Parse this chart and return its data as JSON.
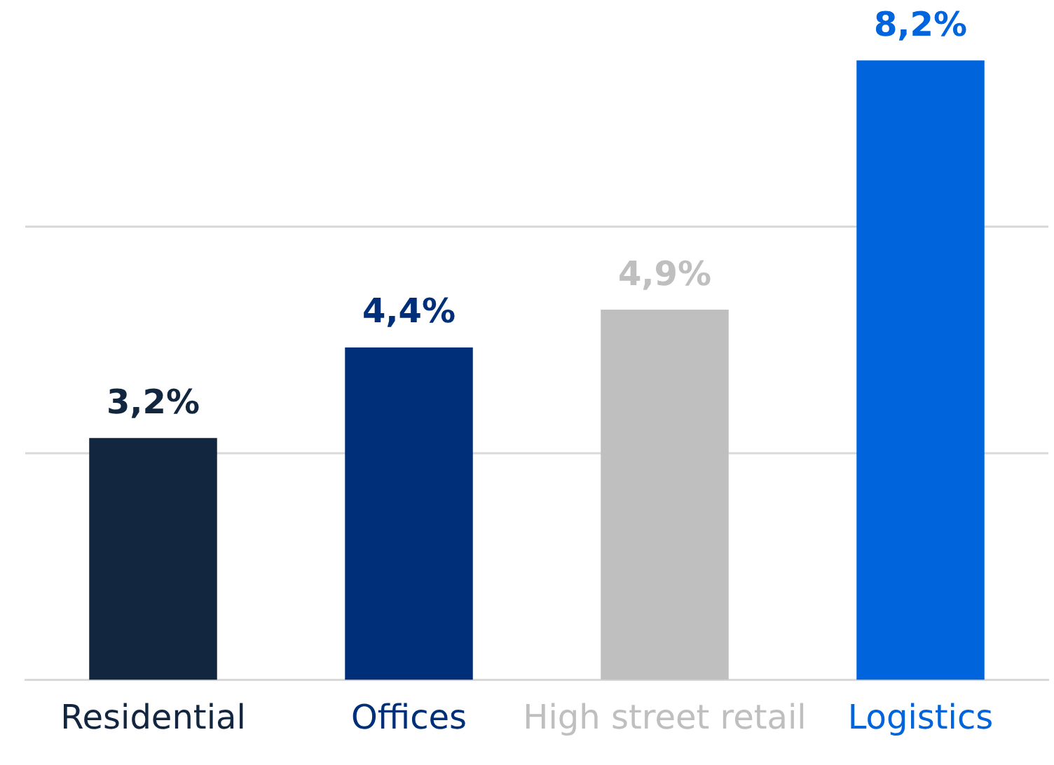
{
  "chart_data": {
    "type": "bar",
    "categories": [
      "Residential",
      "Offices",
      "High street retail",
      "Logistics"
    ],
    "values": [
      3.2,
      4.4,
      4.9,
      8.2
    ],
    "colors": [
      "#12263f",
      "#002f7a",
      "#bfbfbf",
      "#0064dc"
    ],
    "value_labels": [
      "3,2%",
      "4,4%",
      "4,9%",
      "8,2%"
    ],
    "ref_lines": [
      {
        "axis": "y",
        "value": 3,
        "color": "#d9d9d9"
      },
      {
        "axis": "y",
        "value": 6,
        "color": "#d9d9d9"
      }
    ],
    "tick_labels": "x"
  }
}
